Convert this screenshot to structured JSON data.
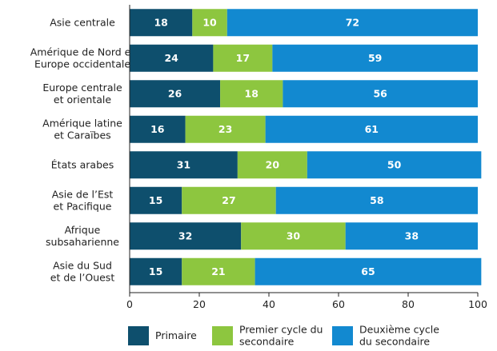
{
  "chart_data": {
    "type": "bar",
    "orientation": "horizontal",
    "stacked": true,
    "categories": [
      "Asie centrale",
      "Amérique de Nord et\nEurope occidentale",
      "Europe centrale\net orientale",
      "Amérique latine\net Caraïbes",
      "États arabes",
      "Asie de l’Est\net Pacifique",
      "Afrique\nsubsaharienne",
      "Asie du Sud\net de l’Ouest"
    ],
    "series": [
      {
        "name": "Primaire",
        "color": "#0e4f6d",
        "values": [
          18,
          24,
          26,
          16,
          31,
          15,
          32,
          15
        ]
      },
      {
        "name": "Premier cycle du\nsecondaire",
        "color": "#8dc63f",
        "values": [
          10,
          17,
          18,
          23,
          20,
          27,
          30,
          21
        ]
      },
      {
        "name": "Deuxième cycle\ndu secondaire",
        "color": "#1289d0",
        "values": [
          72,
          59,
          56,
          61,
          50,
          58,
          38,
          65
        ]
      }
    ],
    "xlim": [
      0,
      100
    ],
    "xticks": [
      0,
      20,
      40,
      60,
      80,
      100
    ],
    "legend": "bottom"
  }
}
